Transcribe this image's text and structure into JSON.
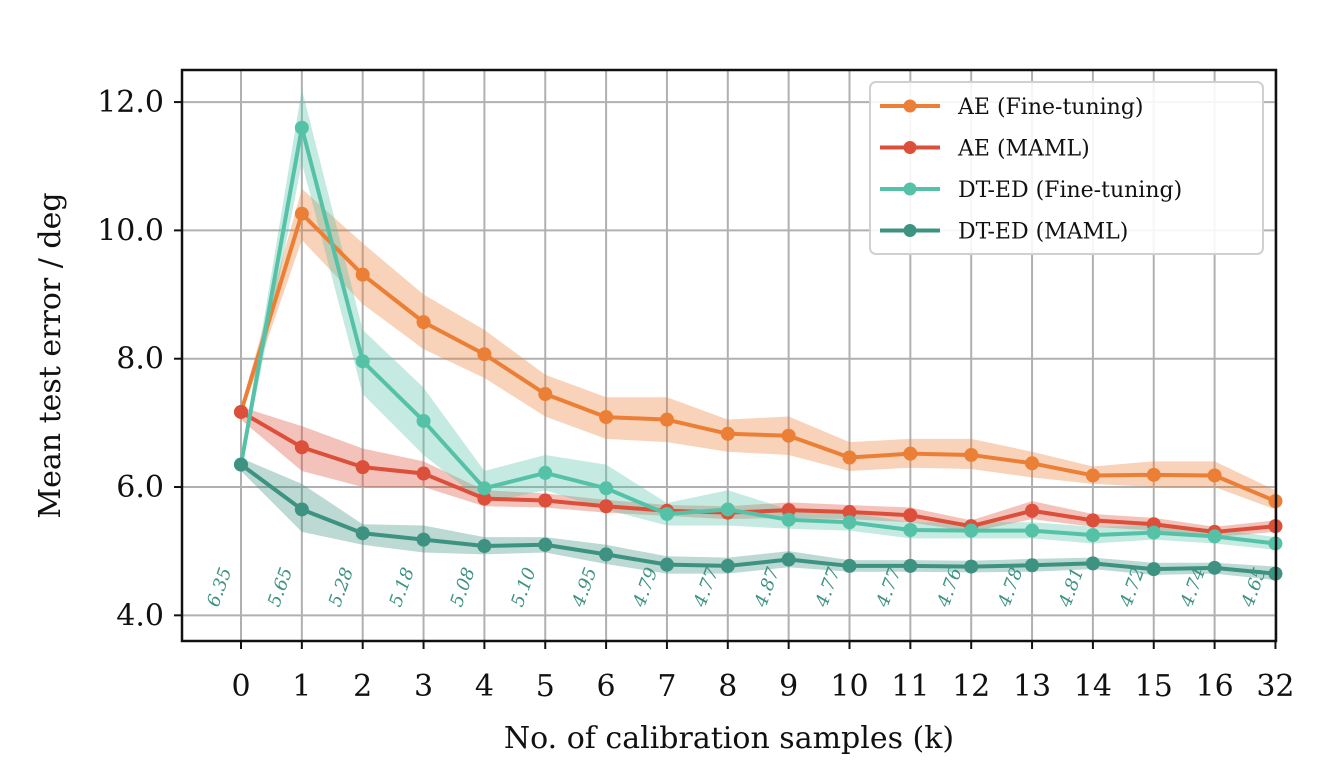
{
  "chart_data": {
    "type": "line",
    "title": "",
    "xlabel": "No. of calibration samples (k)",
    "ylabel": "Mean test error / deg",
    "categories": [
      "0",
      "1",
      "2",
      "3",
      "4",
      "5",
      "6",
      "7",
      "8",
      "9",
      "10",
      "11",
      "12",
      "13",
      "14",
      "15",
      "16",
      "32"
    ],
    "ylim": [
      3.6,
      12.5
    ],
    "yticks": [
      4.0,
      6.0,
      8.0,
      10.0,
      12.0
    ],
    "ytick_labels": [
      "4.0",
      "6.0",
      "8.0",
      "10.0",
      "12.0"
    ],
    "grid": true,
    "legend_position": "top-right",
    "series": [
      {
        "name": "AE (Fine-tuning)",
        "color": "#eb7f36",
        "values": [
          7.17,
          10.26,
          9.31,
          8.57,
          8.07,
          7.45,
          7.09,
          7.05,
          6.83,
          6.8,
          6.46,
          6.52,
          6.5,
          6.37,
          6.18,
          6.19,
          6.18,
          5.78
        ],
        "lower": [
          7.1,
          9.85,
          8.85,
          8.15,
          7.7,
          7.1,
          6.75,
          6.7,
          6.55,
          6.5,
          6.25,
          6.3,
          6.28,
          6.15,
          6.05,
          6.0,
          6.0,
          5.65
        ],
        "upper": [
          7.25,
          10.65,
          9.8,
          9.0,
          8.45,
          7.75,
          7.4,
          7.4,
          7.05,
          7.1,
          6.7,
          6.75,
          6.75,
          6.55,
          6.32,
          6.4,
          6.4,
          5.95
        ]
      },
      {
        "name": "AE (MAML)",
        "color": "#dc4f3a",
        "values": [
          7.17,
          6.62,
          6.31,
          6.21,
          5.82,
          5.79,
          5.7,
          5.63,
          5.6,
          5.64,
          5.61,
          5.56,
          5.39,
          5.63,
          5.48,
          5.42,
          5.3,
          5.39
        ],
        "lower": [
          7.05,
          6.25,
          6.0,
          6.0,
          5.7,
          5.68,
          5.6,
          5.55,
          5.5,
          5.52,
          5.5,
          5.45,
          5.3,
          5.5,
          5.38,
          5.32,
          5.22,
          5.3
        ],
        "upper": [
          7.25,
          6.95,
          6.6,
          6.4,
          5.95,
          5.9,
          5.8,
          5.72,
          5.7,
          5.76,
          5.72,
          5.68,
          5.48,
          5.78,
          5.58,
          5.52,
          5.38,
          5.48
        ]
      },
      {
        "name": "DT-ED (Fine-tuning)",
        "color": "#55c2a8",
        "values": [
          6.35,
          11.6,
          7.96,
          7.03,
          5.98,
          6.22,
          5.98,
          5.58,
          5.65,
          5.49,
          5.45,
          5.33,
          5.32,
          5.32,
          5.25,
          5.29,
          5.23,
          5.12
        ],
        "lower": [
          6.25,
          11.05,
          7.45,
          6.5,
          5.75,
          5.95,
          5.65,
          5.4,
          5.4,
          5.35,
          5.32,
          5.2,
          5.2,
          5.2,
          5.12,
          5.18,
          5.12,
          5.02
        ],
        "upper": [
          6.45,
          12.2,
          8.45,
          7.55,
          6.25,
          6.5,
          6.35,
          5.75,
          5.95,
          5.65,
          5.6,
          5.45,
          5.45,
          5.45,
          5.38,
          5.4,
          5.35,
          5.22
        ]
      },
      {
        "name": "DT-ED (MAML)",
        "color": "#3e9282",
        "values": [
          6.35,
          5.65,
          5.28,
          5.18,
          5.08,
          5.1,
          4.95,
          4.79,
          4.77,
          4.87,
          4.77,
          4.77,
          4.76,
          4.78,
          4.81,
          4.72,
          4.74,
          4.65
        ],
        "lower": [
          6.25,
          5.3,
          5.1,
          4.98,
          4.95,
          4.98,
          4.8,
          4.65,
          4.65,
          4.75,
          4.68,
          4.68,
          4.67,
          4.68,
          4.72,
          4.63,
          4.65,
          4.55
        ],
        "upper": [
          6.45,
          6.05,
          5.42,
          5.4,
          5.22,
          5.22,
          5.1,
          4.92,
          4.9,
          5.0,
          4.86,
          4.86,
          4.85,
          4.88,
          4.9,
          4.82,
          4.82,
          4.76
        ]
      }
    ],
    "annotations": [
      "6.35",
      "5.65",
      "5.28",
      "5.18",
      "5.08",
      "5.10",
      "4.95",
      "4.79",
      "4.77",
      "4.87",
      "4.77",
      "4.77",
      "4.76",
      "4.78",
      "4.81",
      "4.72",
      "4.74",
      "4.65"
    ],
    "annotation_color": "#3e9282"
  }
}
